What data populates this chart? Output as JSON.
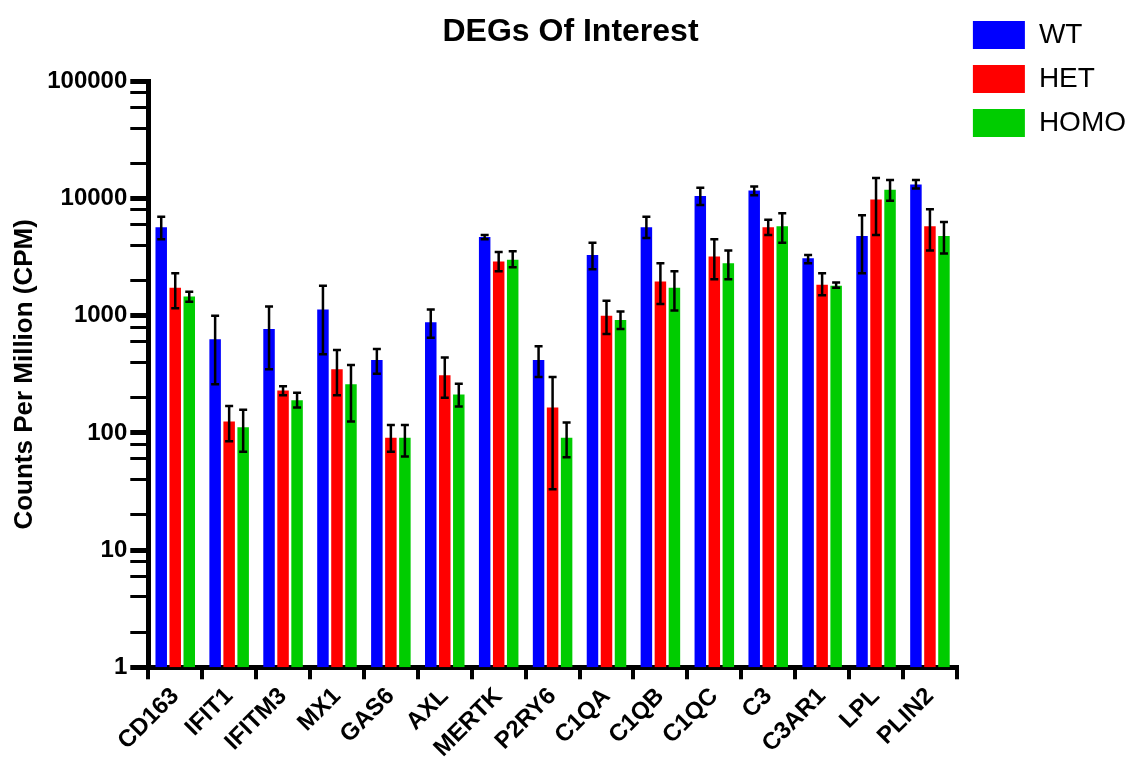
{
  "chart_data": {
    "type": "bar",
    "title": "DEGs Of Interest",
    "ylabel": "Counts Per Million (CPM)",
    "categories": [
      "CD163",
      "IFIT1",
      "IFITM3",
      "MX1",
      "GAS6",
      "AXL",
      "MERTK",
      "P2RY6",
      "C1QA",
      "C1QB",
      "C1QC",
      "C3",
      "C3AR1",
      "LPL",
      "PLIN2"
    ],
    "series": [
      {
        "name": "WT",
        "color": "#0000ff",
        "values": [
          5700,
          630,
          770,
          1130,
          420,
          880,
          4700,
          420,
          3300,
          5700,
          10500,
          11700,
          3100,
          4800,
          13200
        ],
        "errors": [
          [
            4500,
            7000
          ],
          [
            260,
            1000
          ],
          [
            350,
            1200
          ],
          [
            470,
            1800
          ],
          [
            320,
            520
          ],
          [
            650,
            1130
          ],
          [
            4500,
            4900
          ],
          [
            300,
            550
          ],
          [
            2500,
            4200
          ],
          [
            4600,
            7000
          ],
          [
            8800,
            12400
          ],
          [
            10700,
            12700
          ],
          [
            2800,
            3300
          ],
          [
            2300,
            7200
          ],
          [
            12200,
            14400
          ]
        ]
      },
      {
        "name": "HET",
        "color": "#ff0000",
        "values": [
          1730,
          125,
          230,
          350,
          91,
          310,
          2900,
          165,
          1000,
          1960,
          3200,
          5700,
          1840,
          9800,
          5800
        ],
        "errors": [
          [
            1160,
            2300
          ],
          [
            85,
            170
          ],
          [
            210,
            250
          ],
          [
            210,
            510
          ],
          [
            69,
            117
          ],
          [
            200,
            440
          ],
          [
            2400,
            3500
          ],
          [
            33,
            300
          ],
          [
            700,
            1340
          ],
          [
            1260,
            2800
          ],
          [
            2050,
            4500
          ],
          [
            4900,
            6600
          ],
          [
            1500,
            2300
          ],
          [
            4900,
            15000
          ],
          [
            3600,
            8100
          ]
        ]
      },
      {
        "name": "HOMO",
        "color": "#00cc00",
        "values": [
          1460,
          112,
          190,
          260,
          91,
          213,
          3000,
          91,
          920,
          1730,
          2800,
          5800,
          1800,
          11900,
          4800
        ],
        "errors": [
          [
            1320,
            1600
          ],
          [
            69,
            158
          ],
          [
            165,
            220
          ],
          [
            125,
            380
          ],
          [
            63,
            117
          ],
          [
            168,
            263
          ],
          [
            2600,
            3550
          ],
          [
            62,
            123
          ],
          [
            770,
            1090
          ],
          [
            1110,
            2400
          ],
          [
            2050,
            3600
          ],
          [
            4200,
            7500
          ],
          [
            1730,
            1920
          ],
          [
            9600,
            14400
          ],
          [
            3400,
            6300
          ]
        ]
      }
    ],
    "log": "y",
    "ylim": [
      1,
      100000
    ],
    "yticks": [
      1,
      {
        "value": 2,
        "label": null
      },
      {
        "value": 4,
        "label": null
      },
      {
        "value": 6,
        "label": null
      },
      {
        "value": 8,
        "label": null
      },
      10,
      {
        "value": 20,
        "label": null
      },
      {
        "value": 40,
        "label": null
      },
      {
        "value": 60,
        "label": null
      },
      {
        "value": 80,
        "label": null
      },
      100,
      {
        "value": 200,
        "label": null
      },
      {
        "value": 400,
        "label": null
      },
      {
        "value": 600,
        "label": null
      },
      {
        "value": 800,
        "label": null
      },
      1000,
      {
        "value": 2000,
        "label": null
      },
      {
        "value": 4000,
        "label": null
      },
      {
        "value": 6000,
        "label": null
      },
      {
        "value": 8000,
        "label": null
      },
      10000,
      {
        "value": 20000,
        "label": null
      },
      {
        "value": 40000,
        "label": null
      },
      {
        "value": 60000,
        "label": null
      },
      {
        "value": 80000,
        "label": null
      },
      100000
    ],
    "grid": false,
    "legend": "top right"
  }
}
